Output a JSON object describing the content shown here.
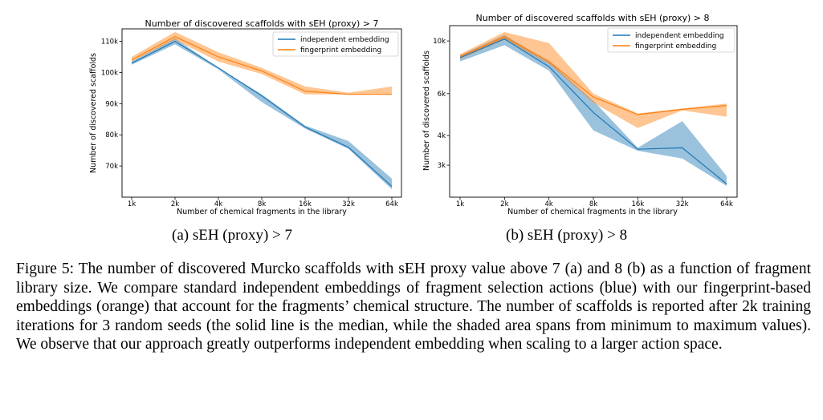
{
  "chart_data": [
    {
      "type": "line",
      "title": "Number of discovered scaffolds with sEH (proxy) > 7",
      "xlabel": "Number of chemical fragments in the library",
      "ylabel": "Number of discovered scaffolds",
      "categories": [
        "1k",
        "2k",
        "4k",
        "8k",
        "16k",
        "32k",
        "64k"
      ],
      "yscale": "linear",
      "ylim": [
        60000,
        114000
      ],
      "yticks": [
        70000,
        80000,
        90000,
        100000,
        110000
      ],
      "ytick_labels": [
        "70k",
        "80k",
        "90k",
        "100k",
        "110k"
      ],
      "legend_position": "top-right",
      "series": [
        {
          "name": "independent embedding",
          "color": "#1f77b4",
          "values": [
            103000,
            110000,
            101500,
            92500,
            82500,
            76000,
            63500
          ],
          "min": [
            102500,
            109000,
            101000,
            90500,
            82000,
            75500,
            62500
          ],
          "max": [
            103500,
            111000,
            101500,
            93000,
            83000,
            78000,
            66000
          ]
        },
        {
          "name": "fingerprint embedding",
          "color": "#ff7f0e",
          "values": [
            104000,
            111500,
            105000,
            100500,
            94000,
            93000,
            93000
          ],
          "min": [
            103500,
            110500,
            103500,
            99500,
            93000,
            93000,
            93000
          ],
          "max": [
            105000,
            113000,
            106500,
            101500,
            95500,
            93500,
            95500
          ]
        }
      ]
    },
    {
      "type": "line",
      "title": "Number of discovered scaffolds with sEH (proxy) > 8",
      "xlabel": "Number of chemical fragments in the library",
      "ylabel": "Number of discovered scaffolds",
      "categories": [
        "1k",
        "2k",
        "4k",
        "8k",
        "16k",
        "32k",
        "64k"
      ],
      "yscale": "log",
      "ylim": [
        2200,
        11600
      ],
      "yticks": [
        3000,
        4000,
        6000,
        10000
      ],
      "ytick_labels": [
        "3k",
        "4k",
        "6k",
        "10k"
      ],
      "legend_position": "top-right",
      "series": [
        {
          "name": "independent embedding",
          "color": "#1f77b4",
          "values": [
            8500,
            10200,
            7800,
            5000,
            3500,
            3550,
            2500
          ],
          "min": [
            8200,
            9600,
            7500,
            4200,
            3450,
            3200,
            2450
          ],
          "max": [
            8700,
            10600,
            8200,
            5600,
            3550,
            4600,
            2700
          ]
        },
        {
          "name": "fingerprint embedding",
          "color": "#ff7f0e",
          "values": [
            8600,
            10400,
            8200,
            5800,
            4900,
            5150,
            5350
          ],
          "min": [
            8400,
            10100,
            8000,
            5500,
            4300,
            5100,
            4800
          ],
          "max": [
            8800,
            10900,
            9800,
            6000,
            4950,
            5200,
            5450
          ]
        }
      ]
    }
  ],
  "subcaptions": {
    "a": "(a) sEH (proxy) > 7",
    "b": "(b) sEH (proxy) > 8"
  },
  "caption": "Figure 5: The number of discovered Murcko scaffolds with sEH proxy value above 7 (a) and 8 (b) as a function of fragment library size. We compare standard independent embeddings of fragment selection actions (blue) with our fingerprint-based embeddings (orange) that account for the fragments’ chemical structure. The number of scaffolds is reported after 2k training iterations for 3 random seeds (the solid line is the median, while the shaded area spans from minimum to maximum values). We observe that our approach greatly outperforms independent embedding when scaling to a larger action space."
}
